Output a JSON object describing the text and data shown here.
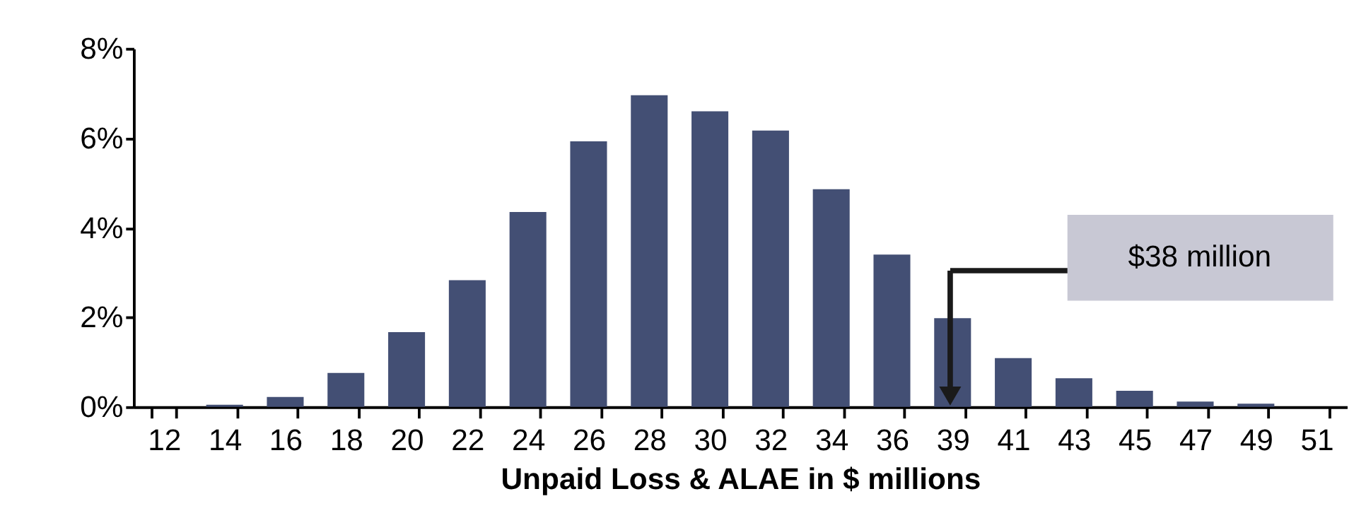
{
  "chart_data": {
    "type": "bar",
    "xlabel": "Unpaid Loss & ALAE in $ millions",
    "categories": [
      "12",
      "14",
      "16",
      "18",
      "20",
      "22",
      "24",
      "26",
      "28",
      "30",
      "32",
      "34",
      "36",
      "39",
      "41",
      "43",
      "45",
      "47",
      "49",
      "51"
    ],
    "values": [
      0,
      0.05,
      0.22,
      0.76,
      1.67,
      2.83,
      4.35,
      5.93,
      6.96,
      6.6,
      6.17,
      4.86,
      3.4,
      1.98,
      1.09,
      0.64,
      0.36,
      0.12,
      0.07,
      0
    ],
    "color": "#434f74",
    "ylim": [
      0,
      8
    ],
    "yticks": [
      {
        "value": 0,
        "label": "0%"
      },
      {
        "value": 2,
        "label": "2%"
      },
      {
        "value": 4,
        "label": "4%"
      },
      {
        "value": 6,
        "label": "6%"
      },
      {
        "value": 8,
        "label": "8%"
      }
    ],
    "grid": false,
    "annotations": [
      "$38 million"
    ]
  }
}
